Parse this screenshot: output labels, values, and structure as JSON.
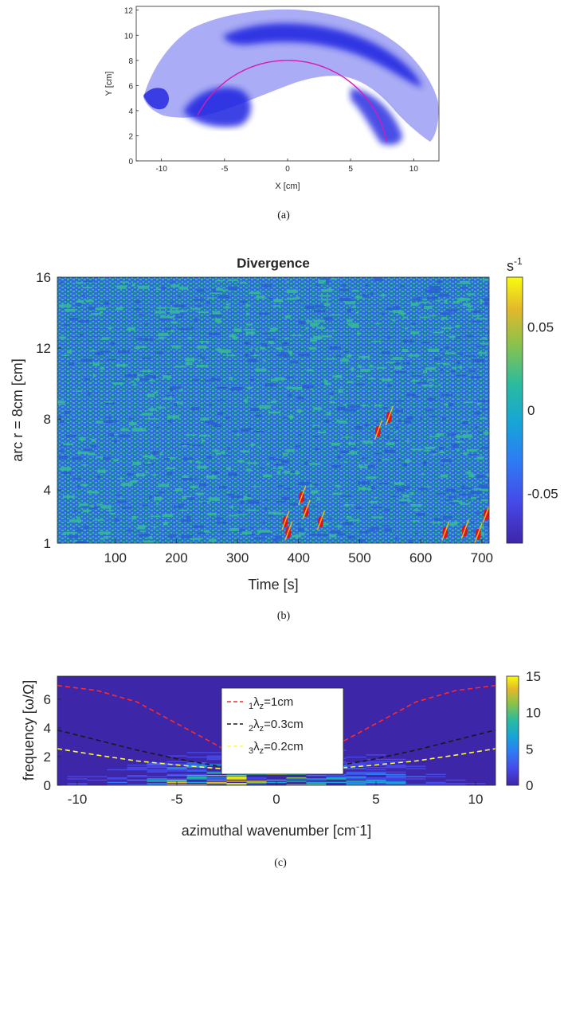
{
  "colors": {
    "parula_dark": "#3e26a8",
    "parula_blue": "#2f6bd9",
    "parula_teal": "#35b79a",
    "parula_yellow": "#f9fb0e",
    "hot_spots": "#e0131c",
    "arc_line": "#d81ab4",
    "field_blue": "#1a1ae6",
    "line_red": "#ff2a2a",
    "line_black": "#1a1a1a",
    "line_yellow": "#ffff33"
  },
  "panel_a": {
    "caption": "(a)",
    "x_label": "X [cm]",
    "y_label": "Y [cm]",
    "x_ticks": [
      "-10",
      "-5",
      "0",
      "5",
      "10"
    ],
    "y_ticks": [
      "0",
      "2",
      "4",
      "6",
      "8",
      "10",
      "12"
    ]
  },
  "panel_b": {
    "caption": "(b)",
    "title": "Divergence",
    "x_label": "Time [s]",
    "y_label": "arc r = 8cm  [cm]",
    "x_ticks": [
      "100",
      "200",
      "300",
      "400",
      "500",
      "600",
      "700"
    ],
    "y_ticks": [
      "1",
      "4",
      "8",
      "12",
      "16"
    ],
    "colorbar_unit_base": "s",
    "colorbar_unit_exp": "-1",
    "colorbar_ticks": [
      "0.05",
      "0",
      "-0.05"
    ]
  },
  "panel_c": {
    "caption": "(c)",
    "x_label": "azimuthal wavenumber [cm",
    "x_label_exp": "-",
    "x_label_tail": "1]",
    "y_label": "frequency [ω/Ω]",
    "x_ticks": [
      "-10",
      "-5",
      "0",
      "5",
      "10"
    ],
    "y_ticks": [
      "0",
      "2",
      "4",
      "6"
    ],
    "colorbar_ticks": [
      "15",
      "10",
      "5",
      "0"
    ],
    "legend": [
      {
        "sub": "1",
        "sym": "λ",
        "zsub": "z",
        "val": "=1cm"
      },
      {
        "sub": "2",
        "sym": "λ",
        "zsub": "z",
        "val": "=0.3cm"
      },
      {
        "sub": "3",
        "sym": "λ",
        "zsub": "z",
        "val": "=0.2cm"
      }
    ]
  },
  "chart_data": [
    {
      "type": "heatmap",
      "id": "a",
      "xlabel": "X [cm]",
      "ylabel": "Y [cm]",
      "xlim": [
        -12,
        12
      ],
      "ylim": [
        0,
        12.3
      ],
      "annotation": "arc of radius 8 cm centred at origin",
      "arc": {
        "radius": 8,
        "theta_start_deg": 11,
        "theta_end_deg": 153
      }
    },
    {
      "type": "heatmap",
      "id": "b",
      "title": "Divergence",
      "xlabel": "Time [s]",
      "ylabel": "arc r = 8cm  [cm]",
      "xlim": [
        5,
        712
      ],
      "ylim": [
        1,
        16
      ],
      "clim": [
        -0.08,
        0.08
      ],
      "hot_spots": [
        {
          "t": 378,
          "s": 2.2
        },
        {
          "t": 383,
          "s": 1.6
        },
        {
          "t": 405,
          "s": 3.6
        },
        {
          "t": 412,
          "s": 2.8
        },
        {
          "t": 436,
          "s": 2.2
        },
        {
          "t": 530,
          "s": 7.3
        },
        {
          "t": 548,
          "s": 8.1
        },
        {
          "t": 640,
          "s": 1.6
        },
        {
          "t": 672,
          "s": 1.7
        },
        {
          "t": 694,
          "s": 1.5
        },
        {
          "t": 707,
          "s": 2.6
        }
      ]
    },
    {
      "type": "heatmap",
      "id": "c",
      "xlabel": "azimuthal wavenumber [cm-1]",
      "ylabel": "frequency [ω/Ω]",
      "xlim": [
        -11,
        11
      ],
      "ylim": [
        0,
        7.6
      ],
      "clim": [
        0,
        15
      ],
      "series": [
        {
          "name": "1λz=1cm",
          "x": [
            -11,
            -9,
            -7,
            -5,
            -3,
            -1.5,
            0,
            1.5,
            3,
            5,
            7,
            9,
            11
          ],
          "y": [
            6.95,
            6.6,
            5.8,
            4.3,
            2.8,
            1.6,
            1.2,
            1.6,
            2.8,
            4.3,
            5.8,
            6.6,
            6.95
          ]
        },
        {
          "name": "2λz=0.3cm",
          "x": [
            -11,
            -9,
            -7,
            -5,
            -3,
            -1.5,
            0,
            1.5,
            3,
            5,
            7,
            9,
            11
          ],
          "y": [
            3.85,
            3.15,
            2.45,
            1.85,
            1.35,
            1.08,
            1.0,
            1.08,
            1.35,
            1.85,
            2.45,
            3.15,
            3.85
          ]
        },
        {
          "name": "3λz=0.2cm",
          "x": [
            -11,
            -9,
            -7,
            -5,
            -3,
            -1.5,
            0,
            1.5,
            3,
            5,
            7,
            9,
            11
          ],
          "y": [
            2.55,
            2.1,
            1.7,
            1.42,
            1.18,
            1.05,
            1.0,
            1.05,
            1.18,
            1.42,
            1.7,
            2.1,
            2.55
          ]
        }
      ]
    }
  ]
}
